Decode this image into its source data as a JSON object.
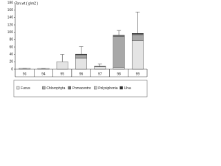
{
  "chart_data": {
    "type": "stacked_bar",
    "y_label": "Ton.wt ( g/m2 )",
    "categories": [
      "93",
      "94",
      "95",
      "96",
      "97",
      "98",
      "99"
    ],
    "series": [
      {
        "name": "Fucus",
        "color": "#e4e4e4",
        "values": [
          3,
          2,
          20,
          30,
          6,
          5,
          78
        ]
      },
      {
        "name": "Chlorophyta",
        "color": "#a8a8a8",
        "values": [
          0,
          0,
          0,
          8,
          0,
          84,
          15
        ]
      },
      {
        "name": "Pomacentro",
        "color": "#707070",
        "values": [
          0,
          0,
          0,
          2,
          2,
          3,
          3
        ]
      },
      {
        "name": "Polysiphonia",
        "color": "#c8c8c8",
        "values": [
          0,
          0,
          0,
          0,
          0,
          0,
          0
        ]
      },
      {
        "name": "Ulva",
        "color": "#303030",
        "values": [
          0,
          0,
          0,
          1,
          0,
          0,
          1
        ]
      }
    ],
    "errors": [
      0,
      0,
      20,
      20,
      6,
      13,
      58
    ],
    "ylim": [
      0,
      180
    ],
    "yticks": [
      0,
      20,
      40,
      60,
      80,
      100,
      120,
      140,
      160,
      180
    ],
    "legend": "bottom"
  }
}
